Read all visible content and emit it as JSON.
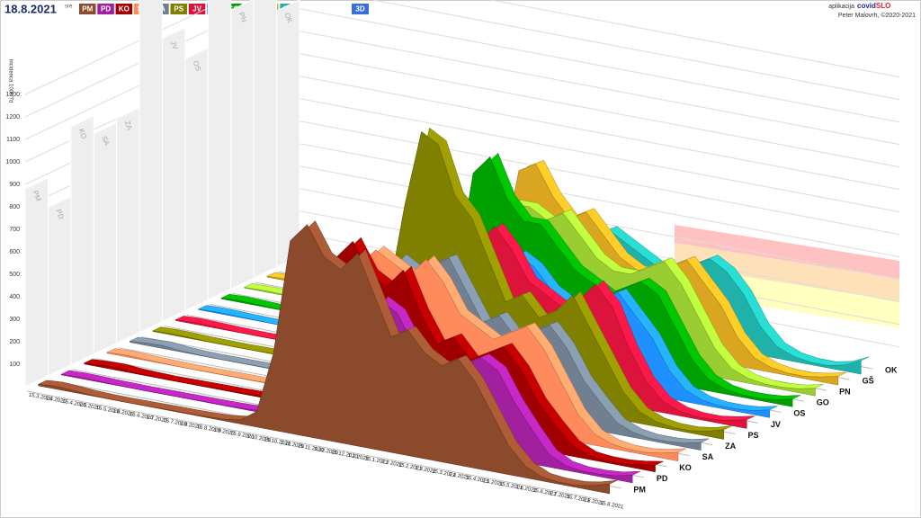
{
  "header": {
    "date": "18.8.2021",
    "weekday": "sre",
    "view_button": "3D",
    "app_label": "aplikacija",
    "brand_a": "covid",
    "brand_b": "SLO",
    "author": "Peter Malovrh, ©2020-2021"
  },
  "chart_data": {
    "type": "ribbon3d",
    "y_label": "Incidenca 100k/7d",
    "categories": [
      "15.3.2020",
      "1.4.2020",
      "15.4.2020",
      "1.5.2020",
      "15.5.2020",
      "1.6.2020",
      "15.6.2020",
      "1.7.2020",
      "15.7.2020",
      "1.8.2020",
      "15.8.2020",
      "1.9.2020",
      "15.9.2020",
      "1.10.2020",
      "15.10.2020",
      "1.11.2020",
      "15.11.2020",
      "1.12.2020",
      "15.12.2020",
      "1.1.2021",
      "15.1.2021",
      "1.2.2021",
      "15.2.2021",
      "1.3.2021",
      "15.3.2021",
      "1.4.2021",
      "15.4.2021",
      "1.5.2021",
      "15.5.2021",
      "1.6.2021",
      "15.6.2021",
      "1.7.2021",
      "15.7.2021",
      "1.8.2021",
      "15.8.2021"
    ],
    "ylim": [
      0,
      1400
    ],
    "yticks": [
      100,
      200,
      300,
      400,
      500,
      600,
      700,
      800,
      900,
      1000,
      1100,
      1200,
      1300
    ],
    "series": [
      {
        "name": "PM",
        "color": "#8b4a2b",
        "wall": 880,
        "values": [
          8,
          15,
          10,
          4,
          1,
          0,
          1,
          2,
          3,
          3,
          5,
          8,
          20,
          80,
          400,
          1000,
          1100,
          950,
          900,
          1000,
          800,
          600,
          650,
          550,
          500,
          550,
          450,
          300,
          150,
          60,
          20,
          10,
          10,
          25,
          50
        ]
      },
      {
        "name": "PD",
        "color": "#a020a0",
        "wall": 750,
        "values": [
          3,
          6,
          5,
          2,
          1,
          0,
          1,
          1,
          2,
          2,
          3,
          5,
          10,
          40,
          200,
          400,
          600,
          550,
          600,
          700,
          650,
          500,
          450,
          400,
          450,
          500,
          450,
          300,
          180,
          70,
          25,
          12,
          12,
          20,
          40
        ]
      },
      {
        "name": "KO",
        "color": "#a00000",
        "wall": 1060,
        "values": [
          5,
          10,
          12,
          5,
          2,
          0,
          1,
          2,
          3,
          3,
          5,
          10,
          30,
          200,
          700,
          800,
          900,
          750,
          700,
          800,
          600,
          450,
          500,
          400,
          450,
          500,
          400,
          250,
          150,
          60,
          20,
          10,
          10,
          20,
          35
        ]
      },
      {
        "name": "SA",
        "color": "#ff8a5c",
        "wall": 980,
        "values": [
          4,
          8,
          6,
          3,
          1,
          0,
          1,
          1,
          2,
          2,
          3,
          6,
          15,
          60,
          300,
          700,
          800,
          750,
          700,
          800,
          700,
          550,
          500,
          450,
          500,
          550,
          450,
          300,
          150,
          60,
          25,
          12,
          12,
          25,
          45
        ]
      },
      {
        "name": "ZA",
        "color": "#708090",
        "wall": 1000,
        "values": [
          6,
          12,
          15,
          6,
          2,
          0,
          1,
          1,
          2,
          2,
          3,
          6,
          15,
          50,
          250,
          600,
          700,
          650,
          700,
          750,
          600,
          450,
          500,
          400,
          450,
          500,
          400,
          250,
          150,
          60,
          25,
          12,
          12,
          20,
          40
        ]
      },
      {
        "name": "PS",
        "color": "#808000",
        "wall": 1620,
        "values": [
          3,
          6,
          5,
          2,
          1,
          0,
          1,
          2,
          2,
          3,
          4,
          8,
          20,
          80,
          400,
          900,
          1300,
          1250,
          1000,
          900,
          700,
          500,
          550,
          450,
          500,
          600,
          450,
          300,
          150,
          60,
          25,
          12,
          12,
          25,
          50
        ]
      },
      {
        "name": "JV",
        "color": "#dc143c",
        "wall": 1260,
        "values": [
          4,
          8,
          6,
          3,
          1,
          0,
          1,
          1,
          2,
          2,
          3,
          6,
          15,
          50,
          250,
          650,
          700,
          650,
          700,
          800,
          700,
          550,
          500,
          450,
          500,
          600,
          500,
          300,
          150,
          60,
          25,
          12,
          12,
          25,
          45
        ]
      },
      {
        "name": "OS",
        "color": "#1e90ff",
        "wall": 1120,
        "values": [
          3,
          6,
          5,
          2,
          1,
          0,
          1,
          1,
          2,
          2,
          3,
          6,
          15,
          50,
          200,
          500,
          600,
          550,
          500,
          600,
          550,
          450,
          400,
          400,
          450,
          500,
          400,
          300,
          150,
          60,
          25,
          12,
          12,
          20,
          40
        ]
      },
      {
        "name": "GO",
        "color": "#00a000",
        "wall": 1660,
        "values": [
          4,
          8,
          6,
          3,
          1,
          0,
          1,
          1,
          2,
          2,
          4,
          8,
          20,
          80,
          350,
          900,
          1000,
          800,
          700,
          700,
          600,
          500,
          450,
          400,
          450,
          500,
          450,
          300,
          150,
          60,
          25,
          12,
          12,
          20,
          40
        ]
      },
      {
        "name": "PN",
        "color": "#9acd32",
        "wall": 1240,
        "values": [
          3,
          6,
          5,
          2,
          1,
          0,
          1,
          1,
          2,
          2,
          3,
          6,
          15,
          50,
          250,
          650,
          700,
          700,
          650,
          700,
          600,
          500,
          450,
          450,
          500,
          550,
          450,
          300,
          150,
          60,
          25,
          12,
          12,
          20,
          40
        ]
      },
      {
        "name": "GŠ",
        "color": "#daa520",
        "wall": 1320,
        "values": [
          4,
          8,
          6,
          3,
          1,
          0,
          1,
          1,
          2,
          2,
          3,
          6,
          15,
          60,
          350,
          800,
          850,
          700,
          600,
          650,
          550,
          450,
          400,
          400,
          450,
          500,
          400,
          300,
          150,
          60,
          25,
          12,
          12,
          25,
          45
        ]
      },
      {
        "name": "OK",
        "color": "#20b2aa",
        "wall": 1140,
        "values": [
          3,
          6,
          5,
          2,
          1,
          0,
          1,
          1,
          2,
          2,
          3,
          5,
          12,
          40,
          200,
          450,
          500,
          450,
          450,
          500,
          450,
          400,
          350,
          350,
          400,
          450,
          400,
          300,
          150,
          60,
          25,
          12,
          12,
          30,
          70
        ]
      }
    ]
  }
}
